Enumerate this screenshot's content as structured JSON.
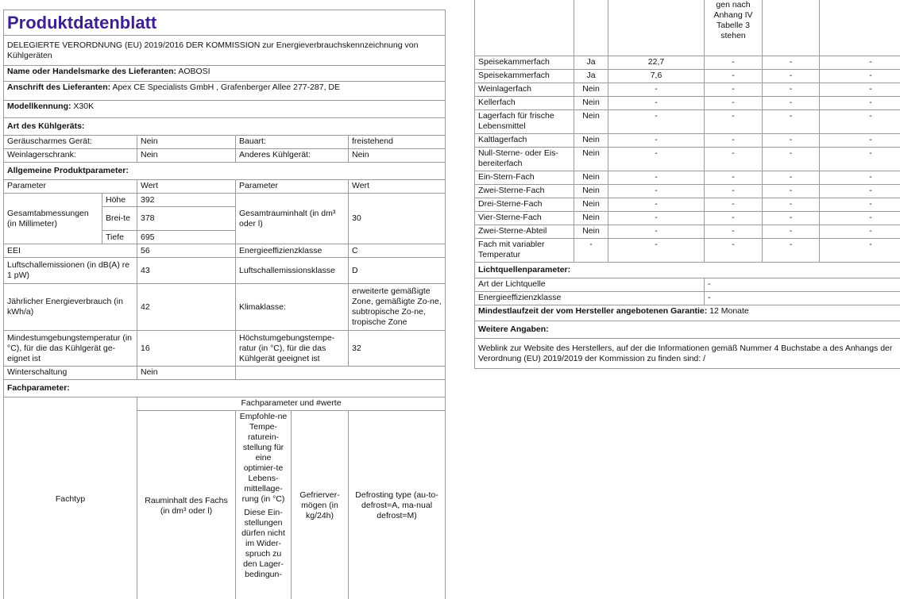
{
  "left": {
    "title": "Produktdatenblatt",
    "regulation": "DELEGIERTE VERORDNUNG (EU) 2019/2016 DER KOMMISSION zur Energieverbrauchskennzeichnung von Kühlgeräten",
    "supplier": {
      "label": "Name oder Handelsmarke des Lieferanten:",
      "value": "AOBOSI"
    },
    "address": {
      "label": "Anschrift des Lieferanten:",
      "value": "Apex CE Specialists GmbH , Grafenberger Allee 277-287, DE"
    },
    "model": {
      "label": "Modellkennung:",
      "value": "X30K"
    },
    "type_heading": "Art des Kühlgeräts:",
    "type_rows": [
      [
        "Geräuscharmes Gerät:",
        "Nein",
        "Bauart:",
        "freistehend"
      ],
      [
        "Weinlagerschrank:",
        "Nein",
        "Anderes Kühlgerät:",
        "Nein"
      ]
    ],
    "general_heading": "Allgemeine Produktparameter:",
    "general_header": [
      "Parameter",
      "Wert",
      "Parameter",
      "Wert"
    ],
    "dimensions": {
      "label": "Gesamtabmessungen (in Millimeter)",
      "parts": [
        [
          "Höhe",
          "392"
        ],
        [
          "Brei-te",
          "378"
        ],
        [
          "Tiefe",
          "695"
        ]
      ],
      "volume_label": "Gesamtrauminhalt (in dm³ oder l)",
      "volume": "30"
    },
    "rows": [
      [
        "EEI",
        "56",
        "Energieeffizienzklasse",
        "C"
      ],
      [
        "Luftschallemissionen (in dB(A) re 1 pW)",
        "43",
        "Luftschallemissionsklasse",
        "D"
      ],
      [
        "Jährlicher Energieverbrauch (in kWh/a)",
        "42",
        "Klimaklasse:",
        "erweiterte gemäßigte Zone, gemäßigte Zo-ne, subtropische Zo-ne, tropische Zone"
      ],
      [
        "Mindestumgebungstemperatur (in °C), für die das Kühlgerät ge-eignet ist",
        "16",
        "Höchstumgebungstempe-ratur (in °C), für die das Kühlgerät geeignet ist",
        "32"
      ]
    ],
    "winter": [
      "Winterschaltung",
      "Nein"
    ],
    "compartment_heading": "Fachparameter:",
    "compartment_type": "Fachtyp",
    "compartment_group": "Fachparameter und #werte",
    "compartment_columns": [
      "Rauminhalt des Fachs (in dm³ oder l)",
      "Empfohle-ne Tempe-raturein-stellung für eine optimier-te Lebens-mittellage-rung (in °C)",
      "Gefrierver-mögen (in kg/24h)",
      "Defrosting type (au-to-defrost=A, ma-nual defrost=M)"
    ],
    "compartment_note": "Diese Ein-stellungen dürfen nicht im Wider-spruch zu den Lager-bedingun-"
  },
  "right": {
    "header_continuation": "gen nach Anhang IV Tabelle 3 stehen",
    "rows": [
      [
        "Speisekammerfach",
        "Ja",
        "22,7",
        "-",
        "-",
        "-"
      ],
      [
        "Speisekammerfach",
        "Ja",
        "7,6",
        "-",
        "-",
        "-"
      ],
      [
        "Weinlagerfach",
        "Nein",
        "-",
        "-",
        "-",
        "-"
      ],
      [
        "Kellerfach",
        "Nein",
        "-",
        "-",
        "-",
        "-"
      ],
      [
        "Lagerfach für frische Lebensmittel",
        "Nein",
        "-",
        "-",
        "-",
        "-"
      ],
      [
        "Kaltlagerfach",
        "Nein",
        "-",
        "-",
        "-",
        "-"
      ],
      [
        "Null-Sterne- oder Eis-bereiterfach",
        "Nein",
        "-",
        "-",
        "-",
        "-"
      ],
      [
        "Ein-Stern-Fach",
        "Nein",
        "-",
        "-",
        "-",
        "-"
      ],
      [
        "Zwei-Sterne-Fach",
        "Nein",
        "-",
        "-",
        "-",
        "-"
      ],
      [
        "Drei-Sterne-Fach",
        "Nein",
        "-",
        "-",
        "-",
        "-"
      ],
      [
        "Vier-Sterne-Fach",
        "Nein",
        "-",
        "-",
        "-",
        "-"
      ],
      [
        "Zwei-Sterne-Abteil",
        "Nein",
        "-",
        "-",
        "-",
        "-"
      ],
      [
        "Fach mit variabler Temperatur",
        "-",
        "-",
        "-",
        "-",
        "-"
      ]
    ],
    "light_heading": "Lichtquellenparameter:",
    "light_rows": [
      [
        "Art der Lichtquelle",
        "-"
      ],
      [
        "Energieeffizienzklasse",
        "-"
      ]
    ],
    "warranty": {
      "label": "Mindestlaufzeit der vom Hersteller angebotenen Garantie:",
      "value": "12 Monate"
    },
    "further_heading": "Weitere Angaben:",
    "weblink": "Weblink zur Website des Herstellers, auf der die Informationen gemäß Nummer 4 Buchstabe a des Anhangs der Verordnung (EU) 2019/2019 der Kommission zu finden sind:  /"
  }
}
